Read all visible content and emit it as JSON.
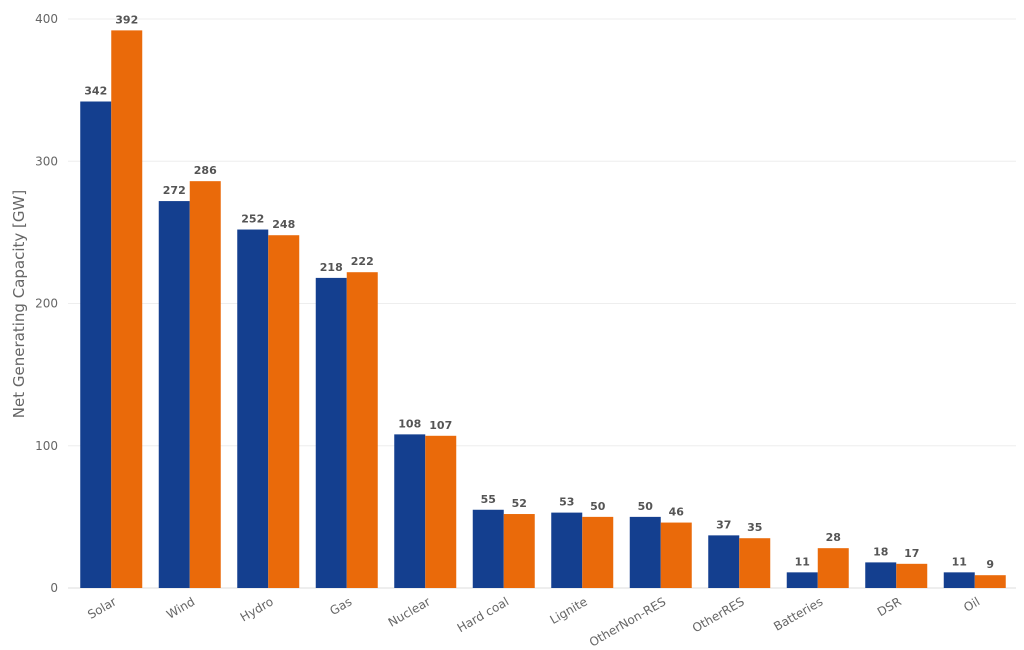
{
  "chart_data": {
    "type": "bar",
    "title": "",
    "xlabel": "",
    "ylabel": "Net Generating Capacity [GW]",
    "ylim": [
      0,
      400
    ],
    "yticks": [
      0,
      100,
      200,
      300,
      400
    ],
    "grid": true,
    "categories": [
      "Solar",
      "Wind",
      "Hydro",
      "Gas",
      "Nuclear",
      "Hard coal",
      "Lignite",
      "OtherNon-RES",
      "OtherRES",
      "Batteries",
      "DSR",
      "Oil"
    ],
    "series": [
      {
        "name": "Series 1",
        "color": "#143f8f",
        "values": [
          342,
          272,
          252,
          218,
          108,
          55,
          53,
          50,
          37,
          11,
          18,
          11
        ]
      },
      {
        "name": "Series 2",
        "color": "#ea6a0a",
        "values": [
          392,
          286,
          248,
          222,
          107,
          52,
          50,
          46,
          35,
          28,
          17,
          9
        ]
      }
    ]
  }
}
